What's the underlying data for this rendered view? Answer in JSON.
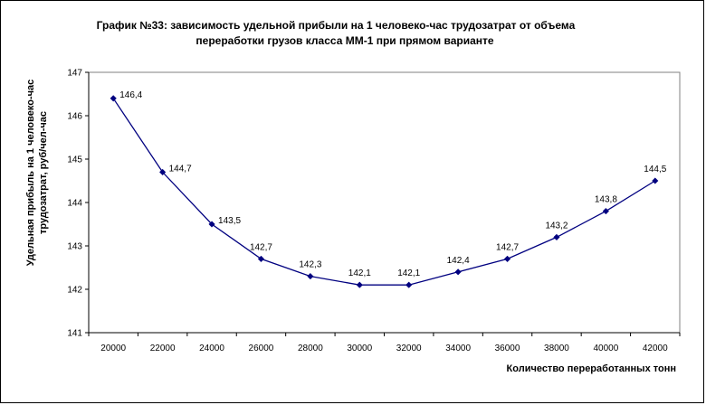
{
  "chart_data": {
    "type": "line",
    "title_line1": "График №33: зависимость удельной прибыли на 1 человеко-час трудозатрат от объема",
    "title_line2": "переработки грузов класса ММ-1 при прямом варианте",
    "ylabel_line1": "Удельная прибыль на 1 человеко-час",
    "ylabel_line2": "трудозатрат, руб/чел-час",
    "xlabel": "Количество переработанных тонн",
    "x": [
      20000,
      22000,
      24000,
      26000,
      28000,
      30000,
      32000,
      34000,
      36000,
      38000,
      40000,
      42000
    ],
    "values": [
      146.4,
      144.7,
      143.5,
      142.7,
      142.3,
      142.1,
      142.1,
      142.4,
      142.7,
      143.2,
      143.8,
      144.5
    ],
    "data_labels": [
      "146,4",
      "144,7",
      "143,5",
      "142,7",
      "142,3",
      "142,1",
      "142,1",
      "142,4",
      "142,7",
      "143,2",
      "143,8",
      "144,5"
    ],
    "ylim": [
      141,
      147
    ],
    "yticks": [
      141,
      142,
      143,
      144,
      145,
      146,
      147
    ],
    "grid": false,
    "line_color": "#000080",
    "marker": "diamond"
  }
}
